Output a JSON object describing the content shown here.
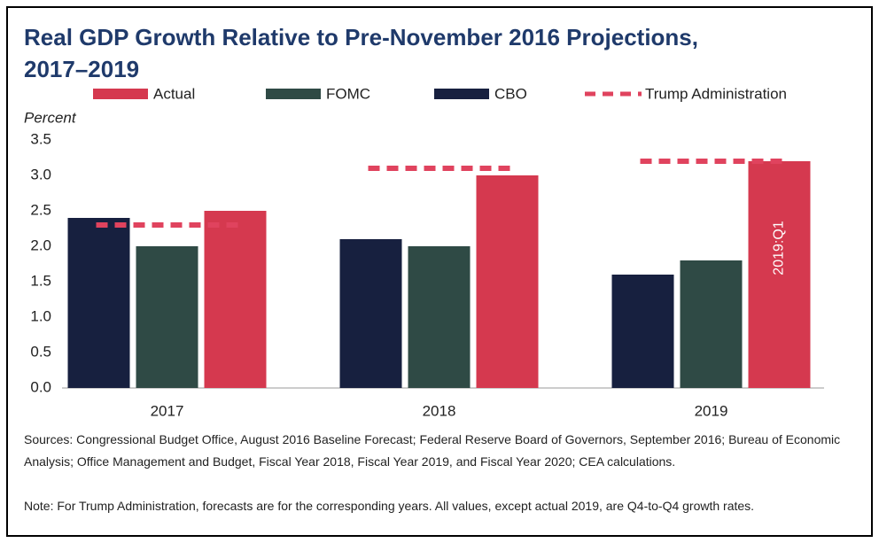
{
  "chart_data": {
    "type": "bar",
    "title": "Real GDP Growth Relative to Pre-November 2016 Projections,",
    "subtitle": "2017–2019",
    "y_label": "Percent",
    "categories": [
      "2017",
      "2018",
      "2019"
    ],
    "series": [
      {
        "name": "Actual",
        "color": "#d5394f",
        "values": [
          2.5,
          3.0,
          3.2
        ]
      },
      {
        "name": "FOMC",
        "color": "#2f4a45",
        "values": [
          2.0,
          2.0,
          1.8
        ]
      },
      {
        "name": "CBO",
        "color": "#17203f",
        "values": [
          2.4,
          2.1,
          1.6
        ]
      },
      {
        "name": "Trump Administration",
        "color": "#e0435e",
        "type": "line",
        "dashed": true,
        "values": [
          2.3,
          3.1,
          3.2
        ]
      }
    ],
    "ylim": [
      0,
      3.5
    ],
    "yticks": [
      {
        "value": 0,
        "label": "0.0"
      },
      0.5,
      {
        "value": 1,
        "label": "1.0"
      },
      1.5,
      {
        "value": 2,
        "label": "2.0"
      },
      2.5,
      {
        "value": 3,
        "label": "3.0"
      },
      3.5
    ],
    "grid": false,
    "annotations": [
      "2019:Q1"
    ],
    "sources": "Sources: Congressional Budget Office, August 2016 Baseline Forecast; Federal Reserve Board of Governors, September 2016; Bureau of Economic Analysis; Office Management and Budget, Fiscal Year 2018, Fiscal Year 2019, and Fiscal Year 2020; CEA calculations.",
    "note": "Note: For Trump Administration, forecasts are for the corresponding years. All values, except actual 2019, are Q4-to-Q4 growth rates."
  }
}
